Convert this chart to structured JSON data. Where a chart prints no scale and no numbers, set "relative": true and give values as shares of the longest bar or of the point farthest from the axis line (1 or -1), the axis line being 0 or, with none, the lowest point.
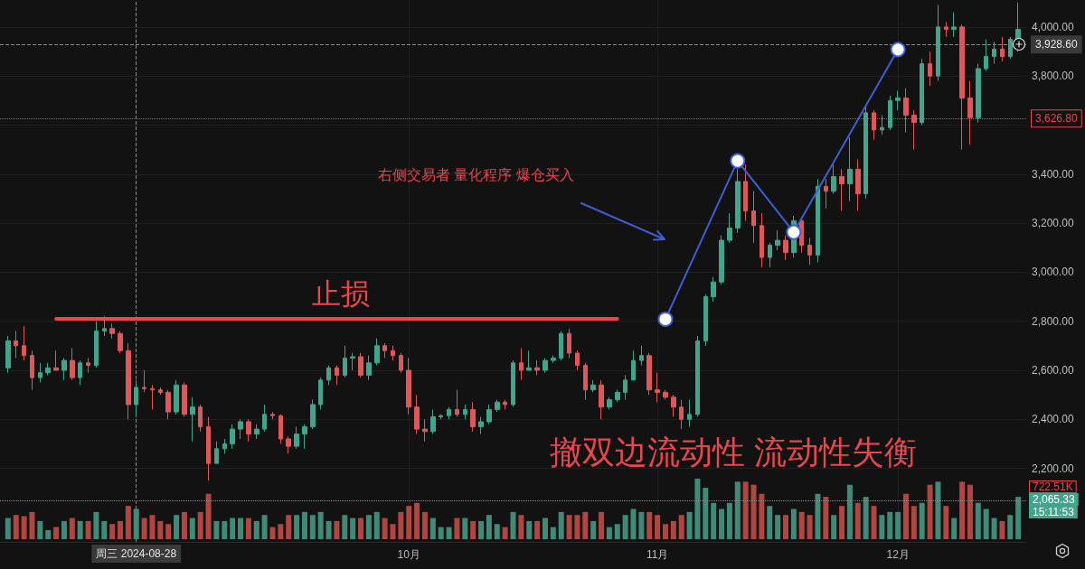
{
  "chart_data": [
    {
      "type": "candlestick",
      "x": [
        "2024-08-12",
        "2024-08-13",
        "2024-08-14",
        "2024-08-15",
        "2024-08-16",
        "2024-08-17",
        "2024-08-18",
        "2024-08-19",
        "2024-08-20",
        "2024-08-21",
        "2024-08-22",
        "2024-08-23",
        "2024-08-24",
        "2024-08-25",
        "2024-08-26",
        "2024-08-27",
        "2024-08-28",
        "2024-08-29",
        "2024-08-30",
        "2024-08-31",
        "2024-09-01",
        "2024-09-02",
        "2024-09-03",
        "2024-09-04",
        "2024-09-05",
        "2024-09-06",
        "2024-09-07",
        "2024-09-08",
        "2024-09-09",
        "2024-09-10",
        "2024-09-11",
        "2024-09-12",
        "2024-09-13",
        "2024-09-14",
        "2024-09-15",
        "2024-09-16",
        "2024-09-17",
        "2024-09-18",
        "2024-09-19",
        "2024-09-20",
        "2024-09-21",
        "2024-09-22",
        "2024-09-23",
        "2024-09-24",
        "2024-09-25",
        "2024-09-26",
        "2024-09-27",
        "2024-09-28",
        "2024-09-29",
        "2024-09-30",
        "2024-10-01",
        "2024-10-02",
        "2024-10-03",
        "2024-10-04",
        "2024-10-05",
        "2024-10-06",
        "2024-10-07",
        "2024-10-08",
        "2024-10-09",
        "2024-10-10",
        "2024-10-11",
        "2024-10-12",
        "2024-10-13",
        "2024-10-14",
        "2024-10-15",
        "2024-10-16",
        "2024-10-17",
        "2024-10-18",
        "2024-10-19",
        "2024-10-20",
        "2024-10-21",
        "2024-10-22",
        "2024-10-23",
        "2024-10-24",
        "2024-10-25",
        "2024-10-26",
        "2024-10-27",
        "2024-10-28",
        "2024-10-29",
        "2024-10-30",
        "2024-10-31",
        "2024-11-01",
        "2024-11-02",
        "2024-11-03",
        "2024-11-04",
        "2024-11-05",
        "2024-11-06",
        "2024-11-07",
        "2024-11-08",
        "2024-11-09",
        "2024-11-10",
        "2024-11-11",
        "2024-11-12",
        "2024-11-13",
        "2024-11-14",
        "2024-11-15",
        "2024-11-16",
        "2024-11-17",
        "2024-11-18",
        "2024-11-19",
        "2024-11-20",
        "2024-11-21",
        "2024-11-22",
        "2024-11-23",
        "2024-11-24",
        "2024-11-25",
        "2024-11-26",
        "2024-11-27",
        "2024-11-28",
        "2024-11-29",
        "2024-11-30",
        "2024-12-01",
        "2024-12-02",
        "2024-12-03",
        "2024-12-04",
        "2024-12-05",
        "2024-12-06",
        "2024-12-07",
        "2024-12-08",
        "2024-12-09",
        "2024-12-10",
        "2024-12-11",
        "2024-12-12",
        "2024-12-13",
        "2024-12-14",
        "2024-12-15",
        "2024-12-16"
      ],
      "ohlc": [
        [
          2610,
          2740,
          2590,
          2720
        ],
        [
          2720,
          2760,
          2650,
          2700
        ],
        [
          2700,
          2780,
          2640,
          2660
        ],
        [
          2660,
          2680,
          2520,
          2570
        ],
        [
          2570,
          2630,
          2550,
          2590
        ],
        [
          2590,
          2630,
          2580,
          2610
        ],
        [
          2610,
          2680,
          2600,
          2600
        ],
        [
          2600,
          2650,
          2560,
          2640
        ],
        [
          2640,
          2690,
          2560,
          2570
        ],
        [
          2570,
          2640,
          2540,
          2630
        ],
        [
          2630,
          2650,
          2590,
          2620
        ],
        [
          2620,
          2800,
          2610,
          2760
        ],
        [
          2760,
          2820,
          2740,
          2770
        ],
        [
          2770,
          2790,
          2730,
          2750
        ],
        [
          2750,
          2760,
          2670,
          2680
        ],
        [
          2680,
          2710,
          2400,
          2460
        ],
        [
          2460,
          2560,
          2410,
          2530
        ],
        [
          2530,
          2600,
          2510,
          2525
        ],
        [
          2525,
          2540,
          2440,
          2520
        ],
        [
          2520,
          2530,
          2500,
          2510
        ],
        [
          2510,
          2520,
          2400,
          2430
        ],
        [
          2430,
          2560,
          2420,
          2540
        ],
        [
          2540,
          2550,
          2410,
          2420
        ],
        [
          2420,
          2490,
          2310,
          2450
        ],
        [
          2450,
          2460,
          2350,
          2370
        ],
        [
          2370,
          2410,
          2150,
          2220
        ],
        [
          2220,
          2310,
          2220,
          2280
        ],
        [
          2280,
          2320,
          2260,
          2300
        ],
        [
          2300,
          2380,
          2280,
          2360
        ],
        [
          2360,
          2400,
          2320,
          2390
        ],
        [
          2390,
          2400,
          2310,
          2340
        ],
        [
          2340,
          2380,
          2320,
          2360
        ],
        [
          2360,
          2460,
          2350,
          2420
        ],
        [
          2420,
          2430,
          2400,
          2415
        ],
        [
          2415,
          2420,
          2300,
          2320
        ],
        [
          2320,
          2330,
          2260,
          2290
        ],
        [
          2290,
          2370,
          2280,
          2340
        ],
        [
          2340,
          2380,
          2280,
          2370
        ],
        [
          2370,
          2480,
          2360,
          2460
        ],
        [
          2460,
          2570,
          2440,
          2560
        ],
        [
          2560,
          2620,
          2540,
          2610
        ],
        [
          2610,
          2620,
          2540,
          2580
        ],
        [
          2580,
          2700,
          2570,
          2650
        ],
        [
          2650,
          2670,
          2600,
          2655
        ],
        [
          2655,
          2670,
          2570,
          2580
        ],
        [
          2580,
          2660,
          2560,
          2630
        ],
        [
          2630,
          2730,
          2620,
          2700
        ],
        [
          2700,
          2710,
          2650,
          2680
        ],
        [
          2680,
          2700,
          2640,
          2660
        ],
        [
          2660,
          2670,
          2590,
          2600
        ],
        [
          2600,
          2650,
          2420,
          2450
        ],
        [
          2450,
          2500,
          2340,
          2360
        ],
        [
          2360,
          2400,
          2310,
          2350
        ],
        [
          2350,
          2440,
          2340,
          2410
        ],
        [
          2410,
          2420,
          2400,
          2415
        ],
        [
          2415,
          2450,
          2400,
          2440
        ],
        [
          2440,
          2520,
          2410,
          2420
        ],
        [
          2420,
          2460,
          2400,
          2440
        ],
        [
          2440,
          2470,
          2350,
          2370
        ],
        [
          2370,
          2410,
          2340,
          2390
        ],
        [
          2390,
          2460,
          2380,
          2440
        ],
        [
          2440,
          2480,
          2430,
          2470
        ],
        [
          2470,
          2480,
          2440,
          2460
        ],
        [
          2460,
          2640,
          2450,
          2630
        ],
        [
          2630,
          2690,
          2560,
          2600
        ],
        [
          2600,
          2680,
          2600,
          2610
        ],
        [
          2610,
          2640,
          2580,
          2600
        ],
        [
          2600,
          2650,
          2590,
          2640
        ],
        [
          2640,
          2660,
          2630,
          2650
        ],
        [
          2650,
          2760,
          2640,
          2750
        ],
        [
          2750,
          2770,
          2650,
          2670
        ],
        [
          2670,
          2680,
          2600,
          2620
        ],
        [
          2620,
          2630,
          2480,
          2520
        ],
        [
          2520,
          2560,
          2510,
          2540
        ],
        [
          2540,
          2560,
          2400,
          2450
        ],
        [
          2450,
          2490,
          2440,
          2480
        ],
        [
          2480,
          2520,
          2470,
          2510
        ],
        [
          2510,
          2580,
          2480,
          2560
        ],
        [
          2560,
          2680,
          2560,
          2640
        ],
        [
          2640,
          2700,
          2620,
          2660
        ],
        [
          2660,
          2670,
          2500,
          2520
        ],
        [
          2520,
          2590,
          2470,
          2510
        ],
        [
          2510,
          2520,
          2480,
          2490
        ],
        [
          2490,
          2500,
          2410,
          2450
        ],
        [
          2450,
          2480,
          2360,
          2400
        ],
        [
          2400,
          2480,
          2370,
          2420
        ],
        [
          2420,
          2740,
          2410,
          2720
        ],
        [
          2720,
          2910,
          2700,
          2900
        ],
        [
          2900,
          2980,
          2880,
          2960
        ],
        [
          2960,
          3150,
          2950,
          3130
        ],
        [
          3130,
          3240,
          3120,
          3180
        ],
        [
          3180,
          3420,
          3160,
          3370
        ],
        [
          3370,
          3440,
          3210,
          3250
        ],
        [
          3250,
          3330,
          3120,
          3190
        ],
        [
          3190,
          3240,
          3020,
          3060
        ],
        [
          3060,
          3120,
          3020,
          3110
        ],
        [
          3110,
          3170,
          3090,
          3130
        ],
        [
          3130,
          3150,
          3050,
          3080
        ],
        [
          3080,
          3230,
          3060,
          3210
        ],
        [
          3210,
          3220,
          3080,
          3110
        ],
        [
          3110,
          3140,
          3030,
          3070
        ],
        [
          3070,
          3380,
          3040,
          3350
        ],
        [
          3350,
          3380,
          3260,
          3330
        ],
        [
          3330,
          3440,
          3320,
          3390
        ],
        [
          3390,
          3420,
          3250,
          3360
        ],
        [
          3360,
          3550,
          3290,
          3420
        ],
        [
          3420,
          3460,
          3250,
          3320
        ],
        [
          3320,
          3680,
          3300,
          3650
        ],
        [
          3650,
          3660,
          3540,
          3580
        ],
        [
          3580,
          3640,
          3560,
          3590
        ],
        [
          3590,
          3720,
          3580,
          3700
        ],
        [
          3700,
          3740,
          3660,
          3710
        ],
        [
          3710,
          3750,
          3570,
          3640
        ],
        [
          3640,
          3660,
          3500,
          3610
        ],
        [
          3610,
          3870,
          3600,
          3850
        ],
        [
          3850,
          3900,
          3760,
          3800
        ],
        [
          3800,
          4090,
          3780,
          4000
        ],
        [
          4000,
          4020,
          3960,
          3990
        ],
        [
          3990,
          4060,
          3960,
          4000
        ],
        [
          4000,
          4010,
          3500,
          3710
        ],
        [
          3710,
          3780,
          3520,
          3630
        ],
        [
          3630,
          3850,
          3610,
          3830
        ],
        [
          3830,
          3950,
          3820,
          3880
        ],
        [
          3880,
          3940,
          3850,
          3910
        ],
        [
          3910,
          3960,
          3860,
          3880
        ],
        [
          3880,
          3960,
          3870,
          3950
        ],
        [
          3950,
          4100,
          3900,
          3990
        ]
      ],
      "series": [
        {
          "type": "line",
          "x": [
            "2024-08-18",
            "2024-10-27"
          ],
          "values": [
            2810,
            2810
          ],
          "color": "#e8474f",
          "marker": "none",
          "line_style": "solid"
        },
        {
          "type": "line",
          "x": [
            "2024-11-02",
            "2024-11-11",
            "2024-11-18",
            "2024-12-01"
          ],
          "values": [
            2808,
            3454,
            3163,
            3908
          ],
          "color": "#3d5fd6",
          "marker": "circle",
          "line_style": "solid"
        }
      ],
      "xlim": [
        "2024-08-11",
        "2024-12-17"
      ],
      "xticks": [
        {
          "value": "2024-10-01",
          "label": "10月"
        },
        {
          "value": "2024-11-01",
          "label": "11月"
        },
        {
          "value": "2024-12-01",
          "label": "12月"
        }
      ],
      "ylim": [
        1900,
        4110
      ],
      "yticks": [
        {
          "value": 2200,
          "label": "2,200.00"
        },
        {
          "value": 2400,
          "label": "2,400.00"
        },
        {
          "value": 2600,
          "label": "2,600.00"
        },
        {
          "value": 2800,
          "label": "2,800.00"
        },
        {
          "value": 3000,
          "label": "3,000.00"
        },
        {
          "value": 3200,
          "label": "3,200.00"
        },
        {
          "value": 3400,
          "label": "3,400.00"
        },
        {
          "value": 3600,
          "label": null
        },
        {
          "value": 3800,
          "label": "3,800.00"
        },
        {
          "value": 4000,
          "label": "4,000.00"
        }
      ],
      "grid": true,
      "ref_lines": [
        {
          "axis": "y",
          "value": 3928.6,
          "label": "3,928.60",
          "color": "#8c8c8c",
          "line_style": "dashed"
        },
        {
          "axis": "y",
          "value": 3626.8,
          "label": "3,626.80",
          "color": "#e8474f",
          "line_style": "dotted"
        },
        {
          "axis": "x",
          "value": "2024-08-28",
          "label": "周三 2024-08-28",
          "color": "#8c8c8c",
          "line_style": "dashed"
        }
      ],
      "annotations": [
        "止损",
        "右侧交易者 量化程序 爆仓买入",
        "撤双边流动性 流动性失衡"
      ]
    },
    {
      "type": "bar",
      "relative": true,
      "x": [
        "2024-08-12",
        "2024-08-13",
        "2024-08-14",
        "2024-08-15",
        "2024-08-16",
        "2024-08-17",
        "2024-08-18",
        "2024-08-19",
        "2024-08-20",
        "2024-08-21",
        "2024-08-22",
        "2024-08-23",
        "2024-08-24",
        "2024-08-25",
        "2024-08-26",
        "2024-08-27",
        "2024-08-28",
        "2024-08-29",
        "2024-08-30",
        "2024-08-31",
        "2024-09-01",
        "2024-09-02",
        "2024-09-03",
        "2024-09-04",
        "2024-09-05",
        "2024-09-06",
        "2024-09-07",
        "2024-09-08",
        "2024-09-09",
        "2024-09-10",
        "2024-09-11",
        "2024-09-12",
        "2024-09-13",
        "2024-09-14",
        "2024-09-15",
        "2024-09-16",
        "2024-09-17",
        "2024-09-18",
        "2024-09-19",
        "2024-09-20",
        "2024-09-21",
        "2024-09-22",
        "2024-09-23",
        "2024-09-24",
        "2024-09-25",
        "2024-09-26",
        "2024-09-27",
        "2024-09-28",
        "2024-09-29",
        "2024-09-30",
        "2024-10-01",
        "2024-10-02",
        "2024-10-03",
        "2024-10-04",
        "2024-10-05",
        "2024-10-06",
        "2024-10-07",
        "2024-10-08",
        "2024-10-09",
        "2024-10-10",
        "2024-10-11",
        "2024-10-12",
        "2024-10-13",
        "2024-10-14",
        "2024-10-15",
        "2024-10-16",
        "2024-10-17",
        "2024-10-18",
        "2024-10-19",
        "2024-10-20",
        "2024-10-21",
        "2024-10-22",
        "2024-10-23",
        "2024-10-24",
        "2024-10-25",
        "2024-10-26",
        "2024-10-27",
        "2024-10-28",
        "2024-10-29",
        "2024-10-30",
        "2024-10-31",
        "2024-11-01",
        "2024-11-02",
        "2024-11-03",
        "2024-11-04",
        "2024-11-05",
        "2024-11-06",
        "2024-11-07",
        "2024-11-08",
        "2024-11-09",
        "2024-11-10",
        "2024-11-11",
        "2024-11-12",
        "2024-11-13",
        "2024-11-14",
        "2024-11-15",
        "2024-11-16",
        "2024-11-17",
        "2024-11-18",
        "2024-11-19",
        "2024-11-20",
        "2024-11-21",
        "2024-11-22",
        "2024-11-23",
        "2024-11-24",
        "2024-11-25",
        "2024-11-26",
        "2024-11-27",
        "2024-11-28",
        "2024-11-29",
        "2024-11-30",
        "2024-12-01",
        "2024-12-02",
        "2024-12-03",
        "2024-12-04",
        "2024-12-05",
        "2024-12-06",
        "2024-12-07",
        "2024-12-08",
        "2024-12-09",
        "2024-12-10",
        "2024-12-11",
        "2024-12-12",
        "2024-12-13",
        "2024-12-14",
        "2024-12-15",
        "2024-12-16"
      ],
      "xlim": [
        "2024-08-11",
        "2024-12-17"
      ],
      "values": [
        0.35,
        0.4,
        0.38,
        0.45,
        0.3,
        0.15,
        0.2,
        0.3,
        0.35,
        0.3,
        0.3,
        0.45,
        0.3,
        0.25,
        0.3,
        0.55,
        0.5,
        0.35,
        0.4,
        0.3,
        0.25,
        0.4,
        0.45,
        0.35,
        0.45,
        0.75,
        0.3,
        0.3,
        0.35,
        0.35,
        0.35,
        0.3,
        0.4,
        0.2,
        0.25,
        0.4,
        0.4,
        0.45,
        0.4,
        0.45,
        0.3,
        0.3,
        0.4,
        0.35,
        0.35,
        0.4,
        0.45,
        0.35,
        0.25,
        0.45,
        0.55,
        0.6,
        0.45,
        0.35,
        0.2,
        0.2,
        0.35,
        0.35,
        0.3,
        0.3,
        0.4,
        0.25,
        0.2,
        0.45,
        0.4,
        0.3,
        0.3,
        0.35,
        0.2,
        0.45,
        0.4,
        0.4,
        0.45,
        0.3,
        0.45,
        0.2,
        0.25,
        0.4,
        0.5,
        0.45,
        0.45,
        0.4,
        0.25,
        0.3,
        0.4,
        0.45,
        1,
        0.85,
        0.6,
        0.5,
        0.6,
        0.95,
        0.95,
        0.9,
        0.75,
        0.55,
        0.4,
        0.4,
        0.5,
        0.45,
        0.4,
        0.75,
        0.7,
        0.4,
        0.55,
        0.9,
        0.6,
        0.7,
        0.55,
        0.4,
        0.45,
        0.45,
        0.75,
        0.55,
        0.6,
        0.9,
        0.95,
        0.55,
        0.35,
        0.95,
        0.9,
        0.6,
        0.5,
        0.35,
        0.3,
        0.4,
        0.7
      ],
      "colors": [
        "#3d8b78",
        "#b0463f",
        "#b0463f",
        "#b0463f",
        "#3d8b78",
        "#3d8b78",
        "#b0463f",
        "#3d8b78",
        "#b0463f",
        "#3d8b78",
        "#b0463f",
        "#3d8b78",
        "#3d8b78",
        "#b0463f",
        "#b0463f",
        "#b0463f",
        "#3d8b78",
        "#b0463f",
        "#b0463f",
        "#b0463f",
        "#b0463f",
        "#3d8b78",
        "#b0463f",
        "#3d8b78",
        "#b0463f",
        "#b0463f",
        "#3d8b78",
        "#3d8b78",
        "#3d8b78",
        "#3d8b78",
        "#b0463f",
        "#3d8b78",
        "#3d8b78",
        "#b0463f",
        "#b0463f",
        "#b0463f",
        "#3d8b78",
        "#3d8b78",
        "#3d8b78",
        "#3d8b78",
        "#3d8b78",
        "#b0463f",
        "#3d8b78",
        "#3d8b78",
        "#b0463f",
        "#3d8b78",
        "#3d8b78",
        "#b0463f",
        "#b0463f",
        "#b0463f",
        "#b0463f",
        "#b0463f",
        "#b0463f",
        "#3d8b78",
        "#3d8b78",
        "#3d8b78",
        "#b0463f",
        "#3d8b78",
        "#b0463f",
        "#3d8b78",
        "#3d8b78",
        "#3d8b78",
        "#b0463f",
        "#3d8b78",
        "#b0463f",
        "#3d8b78",
        "#b0463f",
        "#3d8b78",
        "#3d8b78",
        "#3d8b78",
        "#b0463f",
        "#b0463f",
        "#b0463f",
        "#3d8b78",
        "#b0463f",
        "#3d8b78",
        "#3d8b78",
        "#3d8b78",
        "#3d8b78",
        "#3d8b78",
        "#b0463f",
        "#b0463f",
        "#b0463f",
        "#b0463f",
        "#b0463f",
        "#3d8b78",
        "#3d8b78",
        "#3d8b78",
        "#3d8b78",
        "#3d8b78",
        "#3d8b78",
        "#3d8b78",
        "#b0463f",
        "#b0463f",
        "#b0463f",
        "#3d8b78",
        "#3d8b78",
        "#b0463f",
        "#3d8b78",
        "#b0463f",
        "#b0463f",
        "#3d8b78",
        "#b0463f",
        "#3d8b78",
        "#b0463f",
        "#3d8b78",
        "#b0463f",
        "#3d8b78",
        "#b0463f",
        "#3d8b78",
        "#3d8b78",
        "#3d8b78",
        "#b0463f",
        "#b0463f",
        "#3d8b78",
        "#b0463f",
        "#3d8b78",
        "#b0463f",
        "#3d8b78",
        "#b0463f",
        "#b0463f",
        "#3d8b78",
        "#3d8b78",
        "#3d8b78",
        "#b0463f",
        "#3d8b78",
        "#3d8b78"
      ],
      "ref_lines": [
        {
          "axis": "y",
          "value": 0.64,
          "color": "#8c8c8c",
          "line_style": "dotted"
        }
      ],
      "annotations": [
        "722.51K",
        "2,065.33",
        "15:11:53"
      ]
    }
  ]
}
